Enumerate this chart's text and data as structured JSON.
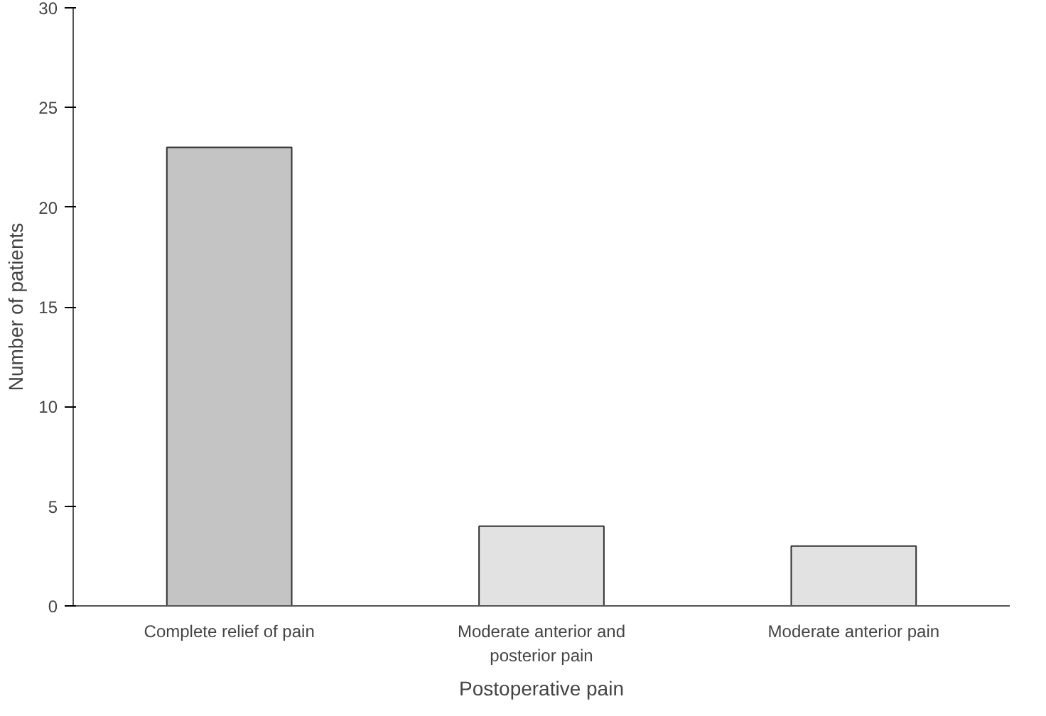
{
  "chart_data": {
    "type": "bar",
    "xlabel": "Postoperative pain",
    "ylabel": "Number of patients",
    "categories": [
      "Complete relief of pain",
      "Moderate anterior and posterior pain",
      "Moderate anterior pain"
    ],
    "values": [
      23,
      4,
      3
    ],
    "colors": [
      "#c4c4c4",
      "#e2e2e2",
      "#e2e2e2"
    ],
    "ylim": [
      0,
      30
    ],
    "yticks": [
      0,
      5,
      10,
      15,
      20,
      25,
      30
    ],
    "grid": false
  }
}
